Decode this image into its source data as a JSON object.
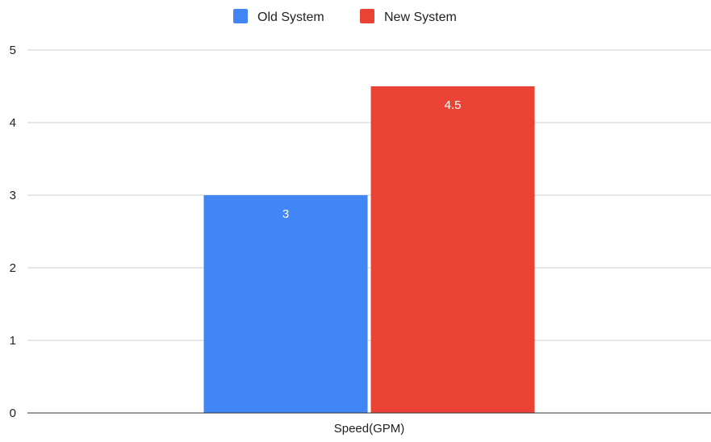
{
  "chart_data": {
    "type": "bar",
    "categories": [
      "Speed(GPM)"
    ],
    "series": [
      {
        "name": "Old System",
        "values": [
          3
        ],
        "color": "#4285F4",
        "data_labels": [
          "3"
        ]
      },
      {
        "name": "New System",
        "values": [
          4.5
        ],
        "color": "#EA4335",
        "data_labels": [
          "4.5"
        ]
      }
    ],
    "ylim": [
      0,
      5
    ],
    "yticks": [
      "0",
      "1",
      "2",
      "3",
      "4",
      "5"
    ],
    "grid": true,
    "legend_position": "top-center",
    "gridline_color": "#cccccc",
    "axis_color": "#333333"
  }
}
